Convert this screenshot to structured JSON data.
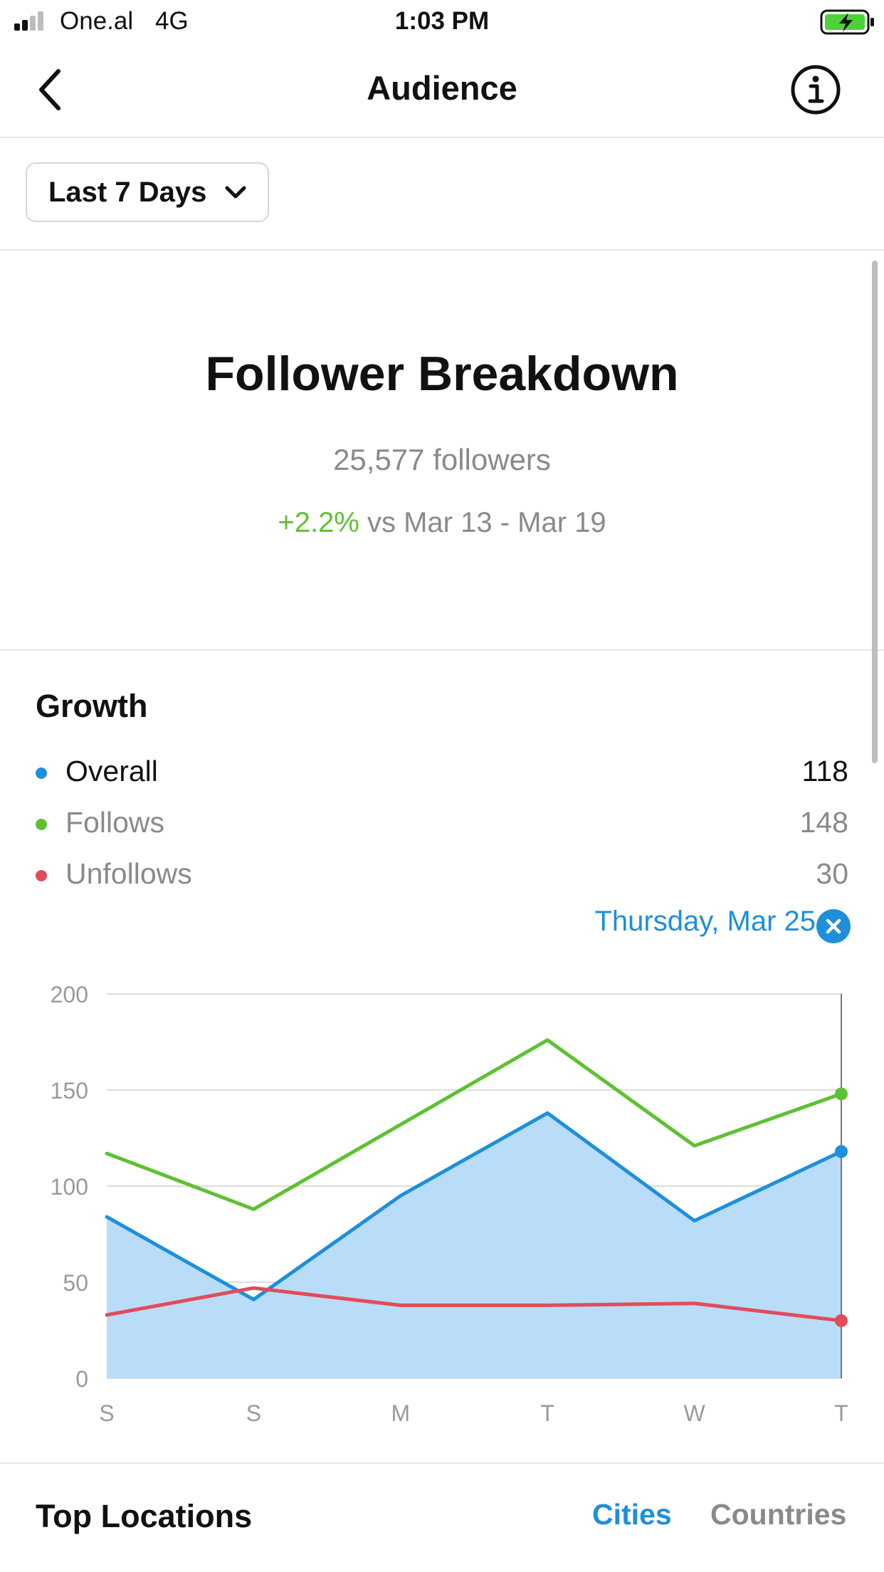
{
  "status_bar": {
    "carrier": "One.al",
    "network": "4G",
    "time": "1:03 PM"
  },
  "nav": {
    "title": "Audience",
    "back_icon": "chevron-left-icon",
    "info_icon": "info-circle-icon"
  },
  "filter": {
    "range_label": "Last 7 Days",
    "dropdown_icon": "chevron-down-icon"
  },
  "breakdown": {
    "title": "Follower Breakdown",
    "followers": "25,577 followers",
    "change": "+2.2%",
    "comparison": "vs Mar 13 - Mar 19"
  },
  "growth": {
    "title": "Growth",
    "legend": [
      {
        "label": "Overall",
        "value": "118",
        "color": "#1d8fdb"
      },
      {
        "label": "Follows",
        "value": "148",
        "color": "#5ec131"
      },
      {
        "label": "Unfollows",
        "value": "30",
        "color": "#e24c5a"
      }
    ],
    "selected_date": "Thursday, Mar 25"
  },
  "chart_data": {
    "type": "line",
    "x": [
      "S",
      "S",
      "M",
      "T",
      "W",
      "T"
    ],
    "ylim": [
      0,
      200
    ],
    "yticks": [
      0,
      50,
      100,
      150,
      200
    ],
    "grid": true,
    "series": [
      {
        "name": "Overall",
        "values": [
          84,
          41,
          95,
          138,
          82,
          118
        ],
        "color": "#1d8fdb",
        "fill": "#b9dcf8"
      },
      {
        "name": "Follows",
        "values": [
          117,
          88,
          132,
          176,
          121,
          148
        ],
        "color": "#5ec131"
      },
      {
        "name": "Unfollows",
        "values": [
          33,
          47,
          38,
          38,
          39,
          30
        ],
        "color": "#e24c5a"
      }
    ],
    "highlight_index": 5
  },
  "locations": {
    "title": "Top Locations",
    "tabs": [
      "Cities",
      "Countries"
    ]
  }
}
